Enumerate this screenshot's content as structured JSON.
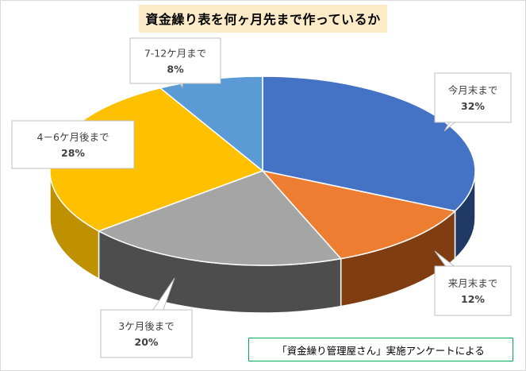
{
  "chart_data": {
    "type": "pie",
    "title": "資金繰り表を何ヶ月先まで作っているか",
    "categories": [
      "今月末まで",
      "来月末まで",
      "3ケ月後まで",
      "4－6ケ月後まで",
      "7-12ケ月まで"
    ],
    "values": [
      32,
      12,
      20,
      28,
      8
    ],
    "value_labels": [
      "32%",
      "12%",
      "20%",
      "28%",
      "8%"
    ],
    "colors": [
      "#4472c4",
      "#ed7d31",
      "#a5a5a5",
      "#ffc000",
      "#5b9bd5"
    ],
    "side_colors": [
      "#203864",
      "#7f3d11",
      "#4d4d4d",
      "#bf9000",
      "#2e5a8a"
    ],
    "style": "3d"
  },
  "source_note": "「資金繰り管理屋さん」実施アンケートによる"
}
